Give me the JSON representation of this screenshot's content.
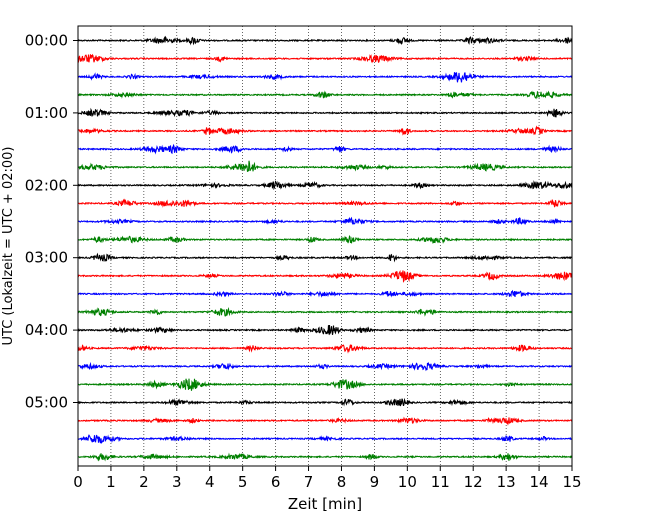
{
  "chart_data": {
    "type": "line",
    "xlabel": "Zeit  [min]",
    "ylabel": "UTC (Lokalzeit = UTC + 02:00)",
    "xlim": [
      0,
      15
    ],
    "x_ticks": [
      "0",
      "1",
      "2",
      "3",
      "4",
      "5",
      "6",
      "7",
      "8",
      "9",
      "10",
      "11",
      "12",
      "13",
      "14",
      "15"
    ],
    "y_ticks": [
      "00:00",
      "01:00",
      "02:00",
      "03:00",
      "04:00",
      "05:00"
    ],
    "grid": "vertical dotted",
    "row_colors": [
      "#000000",
      "#ff0000",
      "#0000ff",
      "#008000"
    ],
    "series": [
      {
        "start": "00:00",
        "color": "#000000"
      },
      {
        "start": "00:15",
        "color": "#ff0000"
      },
      {
        "start": "00:30",
        "color": "#0000ff"
      },
      {
        "start": "00:45",
        "color": "#008000"
      },
      {
        "start": "01:00",
        "color": "#000000"
      },
      {
        "start": "01:15",
        "color": "#ff0000"
      },
      {
        "start": "01:30",
        "color": "#0000ff"
      },
      {
        "start": "01:45",
        "color": "#008000"
      },
      {
        "start": "02:00",
        "color": "#000000"
      },
      {
        "start": "02:15",
        "color": "#ff0000"
      },
      {
        "start": "02:30",
        "color": "#0000ff"
      },
      {
        "start": "02:45",
        "color": "#008000"
      },
      {
        "start": "03:00",
        "color": "#000000"
      },
      {
        "start": "03:15",
        "color": "#ff0000"
      },
      {
        "start": "03:30",
        "color": "#0000ff"
      },
      {
        "start": "03:45",
        "color": "#008000"
      },
      {
        "start": "04:00",
        "color": "#000000"
      },
      {
        "start": "04:15",
        "color": "#ff0000"
      },
      {
        "start": "04:30",
        "color": "#0000ff"
      },
      {
        "start": "04:45",
        "color": "#008000"
      },
      {
        "start": "05:00",
        "color": "#000000"
      },
      {
        "start": "05:15",
        "color": "#ff0000"
      },
      {
        "start": "05:30",
        "color": "#0000ff"
      },
      {
        "start": "05:45",
        "color": "#008000"
      }
    ]
  }
}
